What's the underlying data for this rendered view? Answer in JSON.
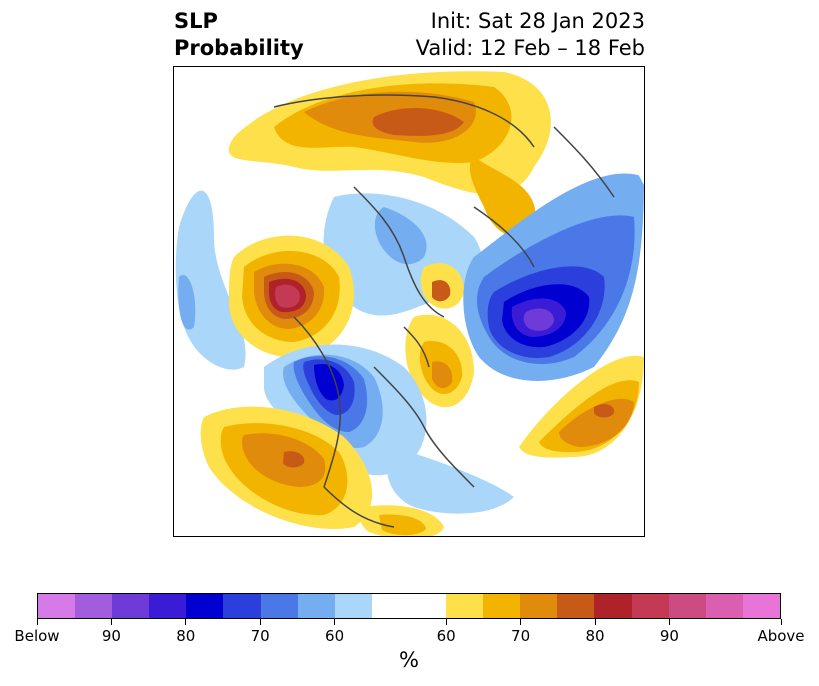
{
  "title": {
    "variable": "SLP",
    "product": "Probability"
  },
  "init": "Init: Sat 28 Jan 2023",
  "valid": "Valid: 12 Feb – 18 Feb",
  "colorbar": {
    "unit": "%",
    "below_colors": [
      "#d67ae8",
      "#a25ddf",
      "#6e3bd8",
      "#3a1cd6",
      "#0000d0",
      "#2a3fdc",
      "#4a78e6",
      "#74aef0",
      "#aad7f9"
    ],
    "neutral_color": "#ffffff",
    "above_colors": [
      "#fde04a",
      "#f3b400",
      "#e08b0c",
      "#c85a18",
      "#b0222a",
      "#c43a55",
      "#cc4b82",
      "#db5fb0",
      "#e874d8"
    ],
    "tick_labels": [
      "Below",
      "90",
      "80",
      "70",
      "60",
      "60",
      "70",
      "80",
      "90",
      "Above"
    ]
  },
  "map_regions": [
    {
      "name": "arctic-negative-anomaly",
      "color": "#aad7f9"
    },
    {
      "name": "east-asia-negative-core",
      "color": "#0000d0"
    },
    {
      "name": "north-pacific-positive-core",
      "color": "#b0222a"
    },
    {
      "name": "north-america-negative",
      "color": "#2a3fdc"
    },
    {
      "name": "eurasia-positive",
      "color": "#e08b0c"
    },
    {
      "name": "hudson-positive",
      "color": "#f3b400"
    },
    {
      "name": "pacific-southeast-positive",
      "color": "#e08b0c"
    },
    {
      "name": "caribbean-positive",
      "color": "#f3b400"
    }
  ]
}
